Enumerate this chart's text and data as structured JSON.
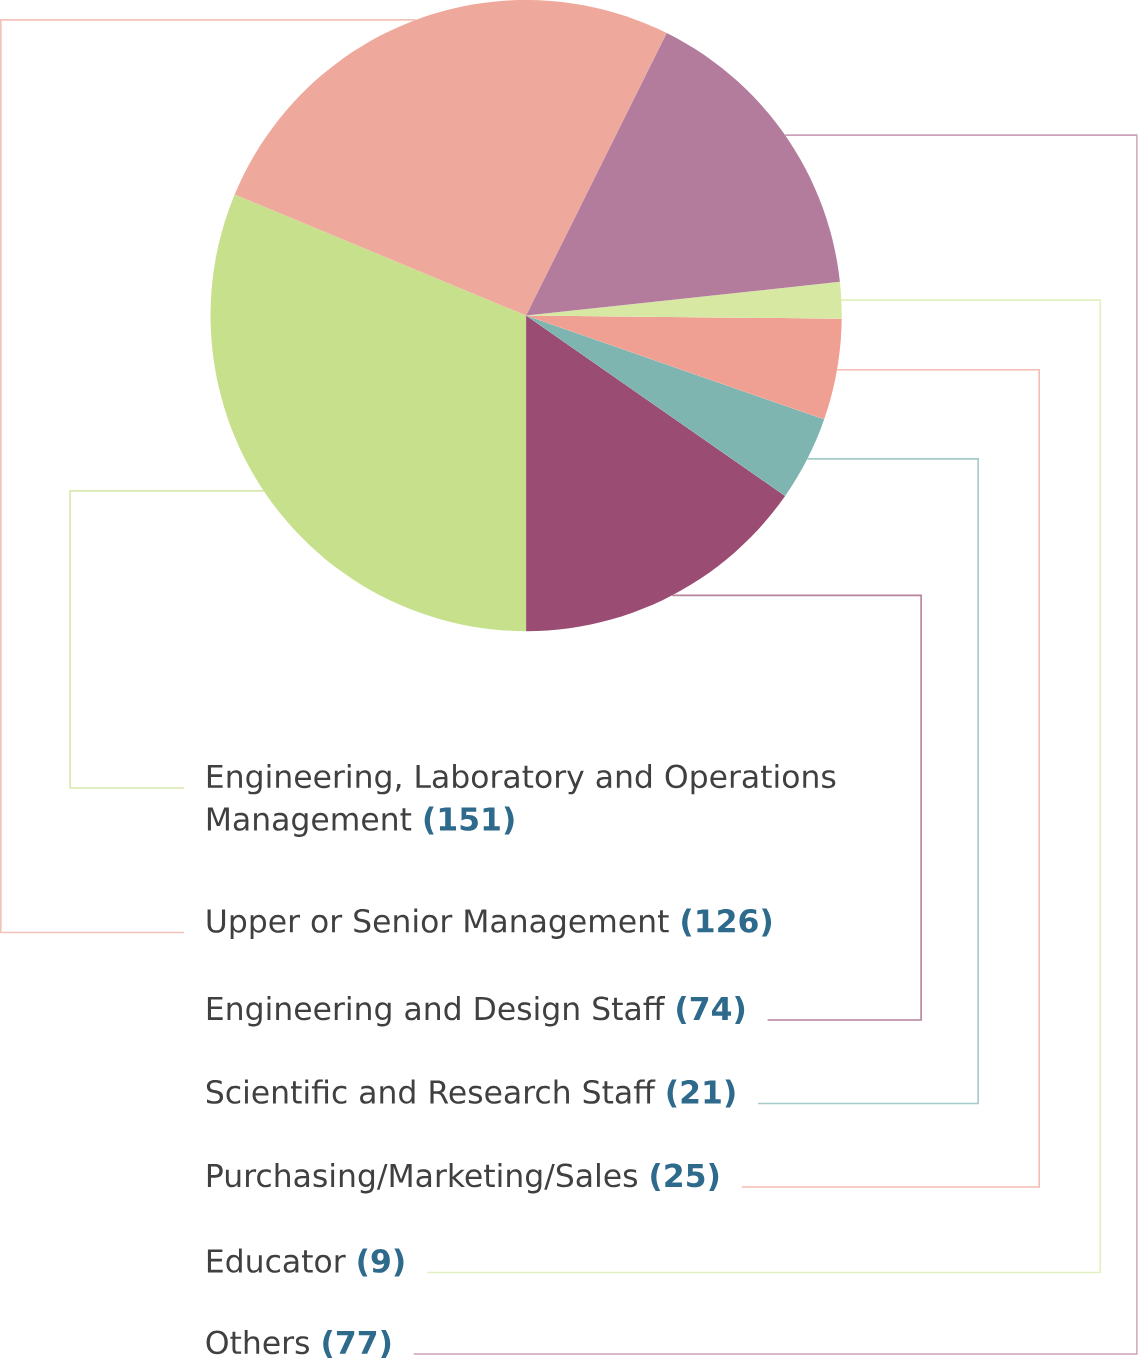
{
  "chart_data": {
    "type": "pie",
    "categories": [
      "Engineering, Laboratory and Operations Management",
      "Upper or Senior Management",
      "Engineering and Design Staff",
      "Scientific and Research Staff",
      "Purchasing/Marketing/Sales",
      "Educator",
      "Others"
    ],
    "values": [
      151,
      126,
      74,
      21,
      25,
      9,
      77
    ],
    "value_labels": [
      "(151)",
      "(126)",
      "(74)",
      "(21)",
      "(25)",
      "(9)",
      "(77)"
    ],
    "colors": [
      "#c6e08c",
      "#eea99c",
      "#9a4c72",
      "#7fb5b0",
      "#f0a092",
      "#d6e8a2",
      "#b47c9c"
    ]
  }
}
